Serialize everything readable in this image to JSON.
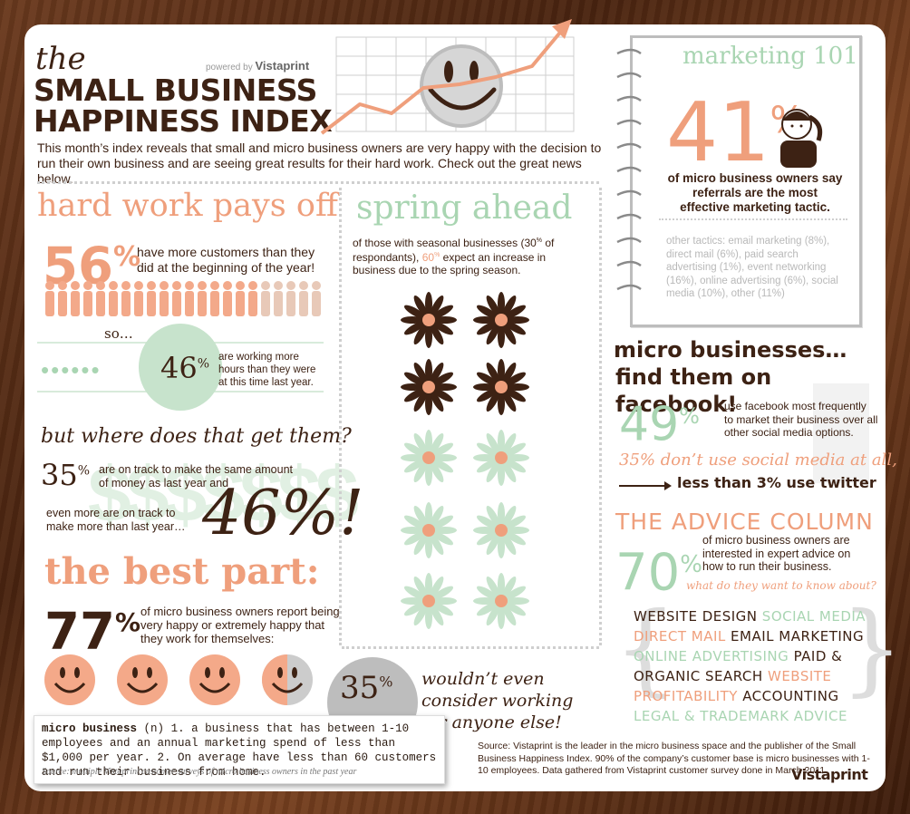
{
  "header": {
    "the": "the",
    "title_line1": "SMALL BUSINESS",
    "title_line2": "HAPPINESS INDEX",
    "powered_by": "powered by",
    "powered_brand": "Vistaprint",
    "intro": "This month’s index reveals that small and micro business owners are very happy with the decision to run their own business and are seeing great results for their hard work. Check out the great news below."
  },
  "hard_work": {
    "heading": "hard work pays off",
    "pct": "56",
    "pct_sign": "%",
    "text": "have more customers than they did at the beginning of the year!",
    "so": "so…",
    "pct2": "46",
    "pct2_sign": "%",
    "text2": "are working more hours than they were at this time last year."
  },
  "where": {
    "heading": "but where does that get them?",
    "pct": "35",
    "pct_sign": "%",
    "text": "are on track to make the same amount of money as last year and",
    "text2": "even more are on track to make more than last year…",
    "big_pct": "46%!"
  },
  "best_part": {
    "heading": "the best part:",
    "pct": "77",
    "pct_sign": "%",
    "text": "of micro business owners report being very happy or extremely happy that they work for themselves:",
    "pct2": "35",
    "pct2_sign": "%",
    "text2": "wouldn’t even consider working for anyone else!"
  },
  "definition": {
    "term": "micro business",
    "pos": "(n)",
    "text": "1. a business that has between 1-10 employees and an annual marketing spend of less than $1,000 per year. 2. On average have less than 60 customers and run their business from home.",
    "source": "Source: multiple Vistaprint customer surveys of micro business owners in the past year"
  },
  "spring": {
    "heading": "spring ahead",
    "text_a": "of those with seasonal businesses (30",
    "text_a_sup": "%",
    "text_b": " of respondants), ",
    "text_c": "60",
    "text_c_sup": "%",
    "text_d": " expect an increase in business due to the spring season."
  },
  "marketing": {
    "heading": "marketing 101",
    "pct": "41",
    "pct_sign": "%",
    "text": "of micro business owners say referrals are the most effective marketing tactic.",
    "other": "other tactics: email marketing (8%), direct mail (6%), paid search advertising (1%), event networking (16%), online advertising (6%), social media (10%), other (11%)"
  },
  "facebook": {
    "heading1": "micro businesses…",
    "heading2": "find them on facebook!",
    "pct": "49",
    "pct_sign": "%",
    "text": "use facebook most frequently to market their business over all other social media options.",
    "no_social": "35% don’t use social media at all,",
    "twitter": "less than 3% use twitter"
  },
  "advice": {
    "heading": "THE ADVICE COLUMN",
    "pct": "70",
    "pct_sign": "%",
    "text": "of micro business owners are interested in expert advice on how to run their business.",
    "question": "what do they want to know about?",
    "topics": {
      "t1": "WEBSITE DESIGN",
      "t2": "SOCIAL MEDIA",
      "t3": "DIRECT MAIL",
      "t4": "EMAIL MARKETING",
      "t5": "ONLINE ADVERTISING",
      "t6": "PAID &",
      "t7": "ORGANIC SEARCH",
      "t8": "WEBSITE",
      "t9": "PROFITABILITY",
      "t10": "ACCOUNTING",
      "t11": "LEGAL & TRADEMARK ADVICE"
    }
  },
  "footer": {
    "source": "Source: Vistaprint is the leader in the micro business space and the publisher of the Small Business Happiness Index. 90% of the company’s customer base is micro businesses with 1-10 employees. Data gathered from Vistaprint customer survey done in March 2011.",
    "brand": "Vistaprint"
  },
  "colors": {
    "brown": "#3d2214",
    "salmon": "#ef9f7c",
    "mint": "#a9d5b2",
    "grey": "#b9b9b9"
  },
  "icons": [
    "smiley-icon",
    "people-crowd-icon",
    "flower-icon",
    "phone-man-icon",
    "arrow-right-icon",
    "dollar-signs-icon",
    "spiral-binding-icon"
  ]
}
